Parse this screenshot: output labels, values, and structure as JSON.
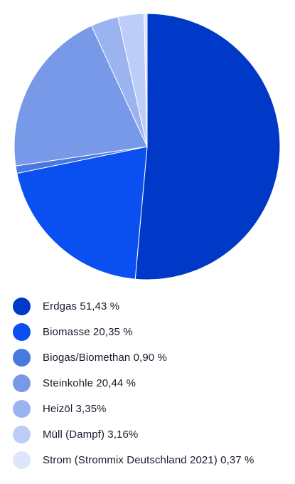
{
  "chart_data": {
    "type": "pie",
    "title": "",
    "slices": [
      {
        "label": "Erdgas",
        "value": 51.43,
        "display": "Erdgas 51,43 %",
        "color": "#0039c7"
      },
      {
        "label": "Biomasse",
        "value": 20.35,
        "display": "Biomasse 20,35 %",
        "color": "#0a4ff0"
      },
      {
        "label": "Biogas/Biomethan",
        "value": 0.9,
        "display": "Biogas/Biomethan 0,90 %",
        "color": "#4a78e3"
      },
      {
        "label": "Steinkohle",
        "value": 20.44,
        "display": "Steinkohle 20,44 %",
        "color": "#7799e8"
      },
      {
        "label": "Heizöl",
        "value": 3.35,
        "display": "Heizöl 3,35%",
        "color": "#9bb3f0"
      },
      {
        "label": "Müll (Dampf)",
        "value": 3.16,
        "display": "Müll (Dampf) 3,16%",
        "color": "#bccdf7"
      },
      {
        "label": "Strom (Strommix Deutschland 2021)",
        "value": 0.37,
        "display": "Strom (Strommix Deutschland 2021) 0,37 %",
        "color": "#dde6fb"
      }
    ],
    "legend_position": "bottom"
  }
}
